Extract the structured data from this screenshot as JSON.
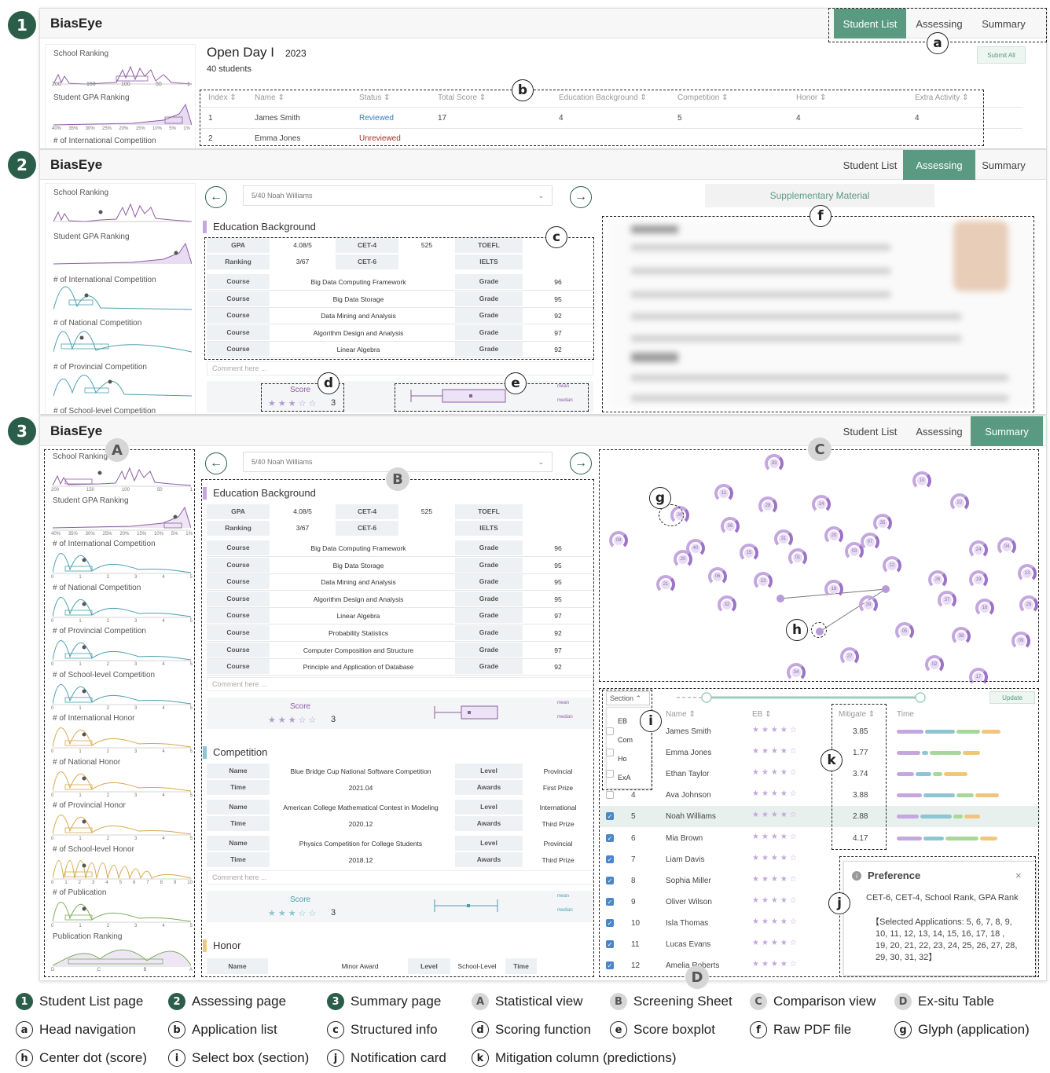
{
  "app_name": "BiasEye",
  "nav": {
    "student_list": "Student List",
    "assessing": "Assessing",
    "summary": "Summary"
  },
  "step_labels": [
    "1",
    "2",
    "3"
  ],
  "annot": {
    "a": "a",
    "b": "b",
    "c": "c",
    "d": "d",
    "e": "e",
    "f": "f",
    "g": "g",
    "h": "h",
    "i": "i",
    "j": "j",
    "k": "k",
    "A": "A",
    "B": "B",
    "C": "C",
    "D": "D"
  },
  "stats": {
    "school_ranking": "School Ranking",
    "gpa_ranking": "Student GPA Ranking",
    "intl_comp": "# of International Competition",
    "natl_comp": "# of National Competition",
    "prov_comp": "# of Provincial Competition",
    "school_comp": "# of School-level Competition",
    "intl_honor": "# of International Honor",
    "natl_honor": "# of National Honor",
    "prov_honor": "# of Provincial Honor",
    "school_honor": "# of School-level Honor",
    "publication": "# of Publication",
    "pub_ranking": "Publication Ranking",
    "rank_ticks": [
      "200",
      "150",
      "100",
      "50",
      "1"
    ],
    "gpa_ticks": [
      "40%",
      "35%",
      "30%",
      "25%",
      "20%",
      "15%",
      "10%",
      "5%",
      "1%"
    ],
    "count_ticks": [
      "0",
      "1",
      "2",
      "3",
      "4",
      "5"
    ],
    "honor_ticks10": [
      "0",
      "1",
      "2",
      "3",
      "4",
      "5",
      "6",
      "7",
      "8",
      "9",
      "10"
    ],
    "pub_ticks": [
      "D",
      "C",
      "B",
      "A"
    ]
  },
  "page1": {
    "title": "Open Day I",
    "year": "2023",
    "count": "40 students",
    "submit": "Submit All",
    "columns": [
      "Index ⇕",
      "Name ⇕",
      "Status ⇕",
      "Total Score ⇕",
      "Education Background ⇕",
      "Competition ⇕",
      "Honor ⇕",
      "Extra Activity ⇕"
    ],
    "rows": [
      {
        "index": "1",
        "name": "James Smith",
        "status": "Reviewed",
        "total": "17",
        "edu": "4",
        "comp": "5",
        "honor": "4",
        "extra": "4"
      },
      {
        "index": "2",
        "name": "Emma Jones",
        "status": "Unreviewed",
        "total": "",
        "edu": "",
        "comp": "",
        "honor": "",
        "extra": ""
      }
    ]
  },
  "assess": {
    "selector": "5/40    Noah Williams",
    "supp": "Supplementary Material",
    "edu_title": "Education Background",
    "gpa_label": "GPA",
    "gpa": "4.08/5",
    "cet4_label": "CET-4",
    "cet4": "525",
    "toefl_label": "TOEFL",
    "ranking_label": "Ranking",
    "ranking": "3/67",
    "cet6_label": "CET-6",
    "ielts_label": "IELTS",
    "course_label": "Course",
    "grade_label": "Grade",
    "courses2": [
      {
        "name": "Big Data Computing Framework",
        "grade": "96"
      },
      {
        "name": "Big Data Storage",
        "grade": "95"
      },
      {
        "name": "Data Mining and Analysis",
        "grade": "92"
      },
      {
        "name": "Algorithm Design and Analysis",
        "grade": "97"
      },
      {
        "name": "Linear Algebra",
        "grade": "92"
      }
    ],
    "courses3": [
      {
        "name": "Big Data Computing Framework",
        "grade": "96"
      },
      {
        "name": "Big Data Storage",
        "grade": "95"
      },
      {
        "name": "Data Mining and Analysis",
        "grade": "95"
      },
      {
        "name": "Algorithm Design and Analysis",
        "grade": "95"
      },
      {
        "name": "Linear Algebra",
        "grade": "97"
      },
      {
        "name": "Probability Statistics",
        "grade": "92"
      },
      {
        "name": "Computer Composition and Structure",
        "grade": "97"
      },
      {
        "name": "Principle and Application of Database",
        "grade": "92"
      }
    ],
    "comment": "Comment here ...",
    "score": "Score",
    "score_val": "3",
    "mean": "mean",
    "median": "median",
    "comp_title": "Competition",
    "comp_name_label": "Name",
    "comp_level_label": "Level",
    "comp_time_label": "Time",
    "comp_awards_label": "Awards",
    "competitions": [
      {
        "name": "Blue Bridge Cup National Software Competition",
        "level": "Provincial",
        "time": "2021.04",
        "award": "First Prize"
      },
      {
        "name": "American College Mathematical Contest in Modeling",
        "level": "International",
        "time": "2020.12",
        "award": "Third Prize"
      },
      {
        "name": "Physics Competition for College Students",
        "level": "Provincial",
        "time": "2018.12",
        "award": "Third Prize"
      }
    ],
    "honor_title": "Honor",
    "honor_name": "Minor Award",
    "honor_level": "School-Level"
  },
  "summary": {
    "section": "Section ⌃",
    "section_options": [
      "EB",
      "Com",
      "Ho",
      "ExA"
    ],
    "update": "Update",
    "col_name": "Name ⇕",
    "col_eb": "EB ⇕",
    "col_mitigate": "Mitigate ⇕",
    "col_time": "Time",
    "rows": [
      {
        "idx": "",
        "name": "James Smith",
        "mit": "3.85",
        "checked": false
      },
      {
        "idx": "",
        "name": "Emma Jones",
        "mit": "1.77",
        "checked": false
      },
      {
        "idx": "",
        "name": "Ethan Taylor",
        "mit": "3.74",
        "checked": false
      },
      {
        "idx": "4",
        "name": "Ava Johnson",
        "mit": "3.88",
        "checked": false
      },
      {
        "idx": "5",
        "name": "Noah Williams",
        "mit": "2.88",
        "checked": true
      },
      {
        "idx": "6",
        "name": "Mia Brown",
        "mit": "4.17",
        "checked": true
      },
      {
        "idx": "7",
        "name": "Liam Davis",
        "mit": "",
        "checked": true
      },
      {
        "idx": "8",
        "name": "Sophia Miller",
        "mit": "",
        "checked": true
      },
      {
        "idx": "9",
        "name": "Oliver Wilson",
        "mit": "",
        "checked": true
      },
      {
        "idx": "10",
        "name": "Isla Thomas",
        "mit": "",
        "checked": true
      },
      {
        "idx": "11",
        "name": "Lucas Evans",
        "mit": "",
        "checked": true
      },
      {
        "idx": "12",
        "name": "Amelia Roberts",
        "mit": "",
        "checked": true
      }
    ],
    "pref_title": "Preference",
    "pref_close": "×",
    "pref_line1": "CET-6, CET-4, School Rank, GPA Rank",
    "pref_line2": "【Selected Applications:  5, 6, 7, 8, 9,",
    "pref_line3": "10, 11, 12, 13, 14, 15, 16, 17, 18 ,",
    "pref_line4": "19, 20, 21, 22, 23, 24, 25, 26, 27, 28,",
    "pref_line5": "29, 30, 31, 32】",
    "glyphs": [
      "33",
      "10",
      "11",
      "28",
      "14",
      "22",
      "08",
      "30",
      "36",
      "31",
      "20",
      "35",
      "24",
      "40",
      "15",
      "01",
      "03",
      "07",
      "04",
      "06",
      "23",
      "12",
      "13",
      "21",
      "32",
      "18",
      "26",
      "19",
      "16",
      "37",
      "29",
      "20",
      "39",
      "05",
      "38",
      "09",
      "27",
      "02",
      "34",
      "17"
    ]
  },
  "legend": [
    {
      "key": "1",
      "text": "Student List page",
      "kind": "num"
    },
    {
      "key": "2",
      "text": "Assessing page",
      "kind": "num"
    },
    {
      "key": "3",
      "text": "Summary page",
      "kind": "num"
    },
    {
      "key": "A",
      "text": "Statistical view",
      "kind": "grey"
    },
    {
      "key": "B",
      "text": "Screening Sheet",
      "kind": "grey"
    },
    {
      "key": "C",
      "text": "Comparison view",
      "kind": "grey"
    },
    {
      "key": "D",
      "text": "Ex-situ Table",
      "kind": "grey"
    },
    {
      "key": "a",
      "text": "Head navigation",
      "kind": "line"
    },
    {
      "key": "b",
      "text": "Application list",
      "kind": "line"
    },
    {
      "key": "c",
      "text": "Structured info",
      "kind": "line"
    },
    {
      "key": "d",
      "text": "Scoring function",
      "kind": "line"
    },
    {
      "key": "e",
      "text": "Score boxplot",
      "kind": "line"
    },
    {
      "key": "f",
      "text": "Raw PDF file",
      "kind": "line"
    },
    {
      "key": "g",
      "text": "Glyph (application)",
      "kind": "line"
    },
    {
      "key": "h",
      "text": "Center dot (score)",
      "kind": "line"
    },
    {
      "key": "i",
      "text": "Select box (section)",
      "kind": "line"
    },
    {
      "key": "j",
      "text": "Notification card",
      "kind": "line"
    },
    {
      "key": "k",
      "text": "Mitigation column (predictions)",
      "kind": "line"
    }
  ]
}
